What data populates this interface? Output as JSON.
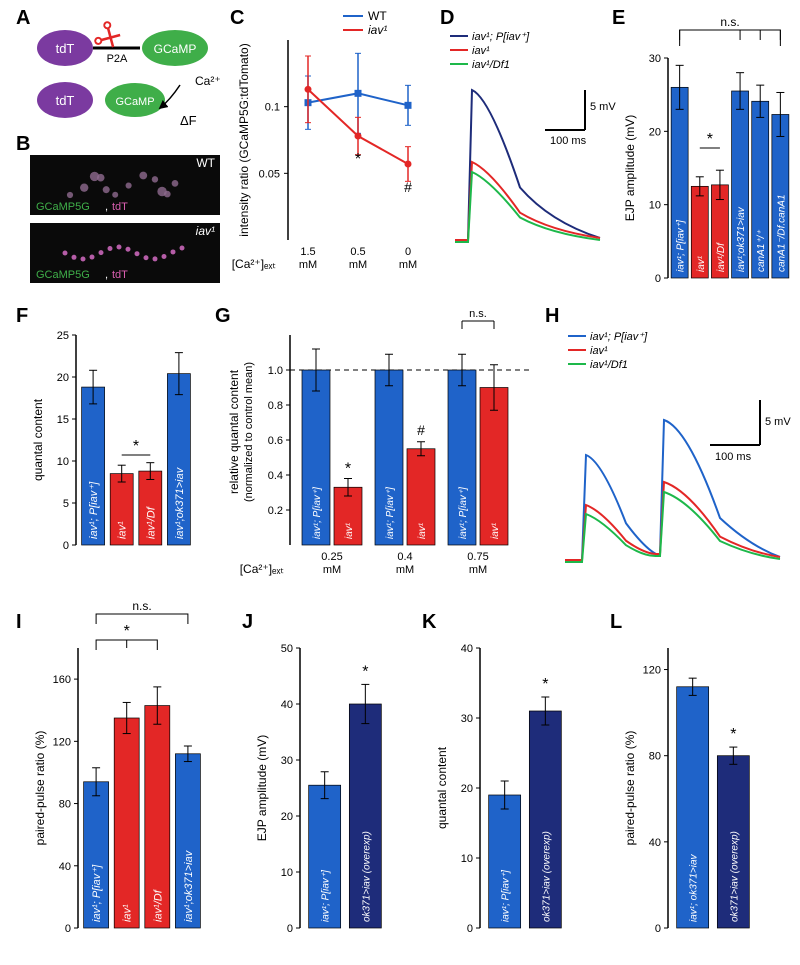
{
  "letters": {
    "A": "A",
    "B": "B",
    "C": "C",
    "D": "D",
    "E": "E",
    "F": "F",
    "G": "G",
    "H": "H",
    "I": "I",
    "J": "J",
    "K": "K",
    "L": "L"
  },
  "colors": {
    "wt_blue": "#1f63c9",
    "iav_red": "#e32726",
    "overexp_dark": "#1e2c7a",
    "green": "#1db84a",
    "purple": "#7b3aa0",
    "gcamp_green": "#3fae49"
  },
  "A": {
    "tdT": "tdT",
    "p2a": "P2A",
    "gcamp": "GCaMP",
    "ca": "Ca²⁺",
    "df": "ΔF"
  },
  "B": {
    "wt_label": "WT",
    "iav_label": "iav¹",
    "gcamp": "GCaMP5G",
    "tdt": "tdT"
  },
  "C": {
    "legend_wt": "WT",
    "legend_iav": "iav¹",
    "ylabel": "intensity ratio (GCaMP5G:tdTomato)",
    "xlabel": "[Ca²⁺]ₑₓₜ",
    "xticks": [
      "1.5",
      "0.5",
      "0"
    ],
    "xunit": "mM",
    "ylim": [
      0,
      0.15
    ],
    "yticks": [
      0.05,
      0.1
    ],
    "wt": {
      "x": [
        0,
        1,
        2
      ],
      "y": [
        0.103,
        0.11,
        0.101
      ],
      "err": [
        0.02,
        0.03,
        0.015
      ],
      "color": "#1f63c9"
    },
    "iav": {
      "x": [
        0,
        1,
        2
      ],
      "y": [
        0.113,
        0.078,
        0.057
      ],
      "err": [
        0.025,
        0.014,
        0.013
      ],
      "color": "#e32726"
    },
    "star": "*",
    "hash": "#"
  },
  "D": {
    "legend": [
      {
        "text": "iav¹; P[iav⁺]",
        "color": "#1e2c7a"
      },
      {
        "text": "iav¹",
        "color": "#e32726"
      },
      {
        "text": "iav¹/Df1",
        "color": "#1db84a"
      }
    ],
    "scale_v": "5 mV",
    "scale_t": "100 ms"
  },
  "E": {
    "ylabel": "EJP amplitude (mV)",
    "ylim": [
      0,
      30
    ],
    "ytick": 10,
    "bars": [
      {
        "label": "iav¹; P[iav⁺]",
        "y": 26.0,
        "err": 3.0,
        "color": "#1f63c9"
      },
      {
        "label": "iav¹",
        "y": 12.5,
        "err": 1.3,
        "color": "#e32726"
      },
      {
        "label": "iav¹/Df",
        "y": 12.7,
        "err": 2.0,
        "color": "#e32726"
      },
      {
        "label": "iav¹;ok371>iav",
        "y": 25.5,
        "err": 2.5,
        "color": "#1f63c9"
      },
      {
        "label": "canA1⁺/⁺",
        "y": 24.1,
        "err": 2.2,
        "color": "#1f63c9"
      },
      {
        "label": "canA1⁻/Df.canA1",
        "y": 22.3,
        "err": 3.0,
        "color": "#1f63c9"
      }
    ],
    "star": "*",
    "ns": "n.s."
  },
  "F": {
    "ylabel": "quantal content",
    "ylim": [
      0,
      25
    ],
    "ytick": 5,
    "bars": [
      {
        "label": "iav¹; P[iav⁺]",
        "y": 18.8,
        "err": 2.0,
        "color": "#1f63c9"
      },
      {
        "label": "iav¹",
        "y": 8.5,
        "err": 1.0,
        "color": "#e32726"
      },
      {
        "label": "iav¹/Df",
        "y": 8.8,
        "err": 1.0,
        "color": "#e32726"
      },
      {
        "label": "iav¹;ok371>iav",
        "y": 20.4,
        "err": 2.5,
        "color": "#1f63c9"
      }
    ],
    "star": "*"
  },
  "G": {
    "ylabel": "relative quantal content\n(normalized to control mean)",
    "xlabel": "[Ca²⁺]ₑₓₜ",
    "xunit": "mM",
    "ylim": [
      0,
      1.2
    ],
    "yticks": [
      0.2,
      0.4,
      0.6,
      0.8,
      1.0
    ],
    "groups": [
      {
        "x": "0.25",
        "bars": [
          {
            "label": "iav¹; P[iav⁺]",
            "y": 1.0,
            "err": 0.12,
            "color": "#1f63c9"
          },
          {
            "label": "iav¹",
            "y": 0.33,
            "err": 0.05,
            "color": "#e32726"
          }
        ]
      },
      {
        "x": "0.4",
        "bars": [
          {
            "label": "iav¹; P[iav⁺]",
            "y": 1.0,
            "err": 0.09,
            "color": "#1f63c9"
          },
          {
            "label": "iav¹",
            "y": 0.55,
            "err": 0.04,
            "color": "#e32726"
          }
        ]
      },
      {
        "x": "0.75",
        "bars": [
          {
            "label": "iav¹; P[iav⁺]",
            "y": 1.0,
            "err": 0.09,
            "color": "#1f63c9"
          },
          {
            "label": "iav¹",
            "y": 0.9,
            "err": 0.13,
            "color": "#e32726"
          }
        ]
      }
    ],
    "star": "*",
    "hash": "#",
    "ns": "n.s."
  },
  "H": {
    "legend": [
      {
        "text": "iav¹; P[iav⁺]",
        "color": "#1f63c9"
      },
      {
        "text": "iav¹",
        "color": "#e32726"
      },
      {
        "text": "iav¹/Df1",
        "color": "#1db84a"
      }
    ],
    "scale_v": "5 mV",
    "scale_t": "100 ms"
  },
  "I": {
    "ylabel": "paired-pulse ratio (%)",
    "ylim": [
      0,
      180
    ],
    "ytick": 40,
    "bars": [
      {
        "label": "iav¹; P[iav⁺]",
        "y": 94,
        "err": 9,
        "color": "#1f63c9"
      },
      {
        "label": "iav¹",
        "y": 135,
        "err": 10,
        "color": "#e32726"
      },
      {
        "label": "iav¹/Df",
        "y": 143,
        "err": 12,
        "color": "#e32726"
      },
      {
        "label": "iav¹;ok371>iav",
        "y": 112,
        "err": 5,
        "color": "#1f63c9"
      }
    ],
    "star": "*",
    "ns": "n.s."
  },
  "J": {
    "ylabel": "EJP amplitude (mV)",
    "ylim": [
      0,
      50
    ],
    "ytick": 10,
    "bars": [
      {
        "label": "iav¹; P[iav⁺]",
        "y": 25.5,
        "err": 2.4,
        "color": "#1f63c9"
      },
      {
        "label": "ok371>iav (overexp)",
        "y": 40.0,
        "err": 3.5,
        "color": "#1e2c7a"
      }
    ],
    "star": "*"
  },
  "K": {
    "ylabel": "quantal content",
    "ylim": [
      0,
      40
    ],
    "ytick": 10,
    "bars": [
      {
        "label": "iav¹; P[iav⁺]",
        "y": 19,
        "err": 2.0,
        "color": "#1f63c9"
      },
      {
        "label": "ok371>iav (overexp)",
        "y": 31,
        "err": 2.0,
        "color": "#1e2c7a"
      }
    ],
    "star": "*"
  },
  "L": {
    "ylabel": "paired-pulse ratio (%)",
    "ylim": [
      0,
      130
    ],
    "ytick": 40,
    "bars": [
      {
        "label": "iav¹; ok371>iav",
        "y": 112,
        "err": 4,
        "color": "#1f63c9"
      },
      {
        "label": "ok371>iav (overexp)",
        "y": 80,
        "err": 4,
        "color": "#1e2c7a"
      }
    ],
    "star": "*"
  }
}
